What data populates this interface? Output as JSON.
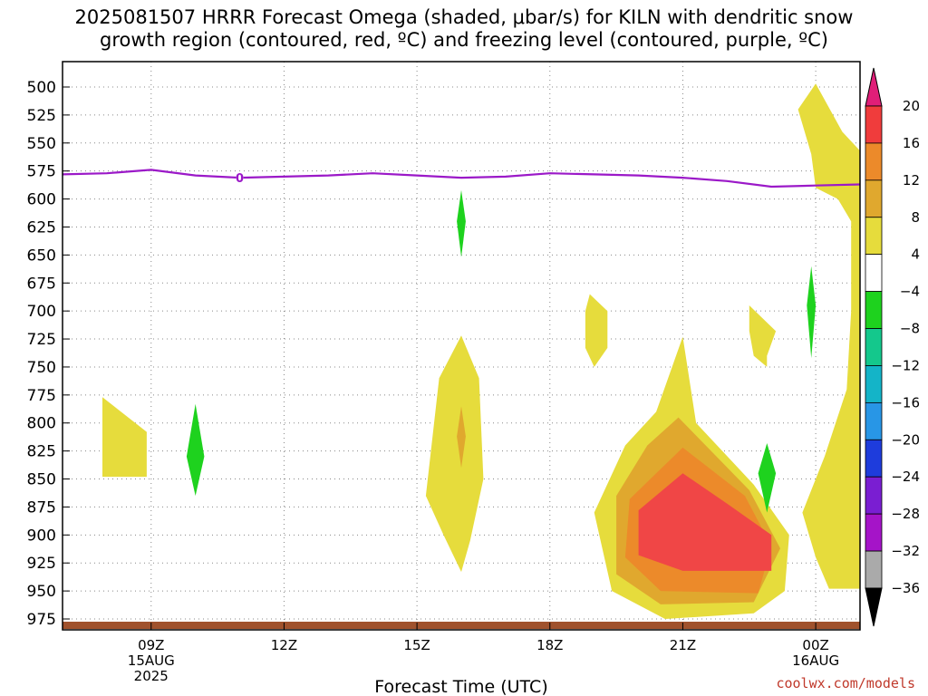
{
  "title": {
    "line1": "2025081507 HRRR Forecast Omega (shaded, μbar/s) for KILN with dendritic snow",
    "line2": "growth region (contoured, red, ºC) and freezing level (contoured, purple, ºC)"
  },
  "xaxis_title": "Forecast Time (UTC)",
  "credit": "coolwx.com/models",
  "colors": {
    "yellow": "#e6dc3c",
    "gold": "#e0a82e",
    "orange": "#ec8a2a",
    "red": "#f04646",
    "green": "#1ed21e",
    "freezing_line": "#9b19c8",
    "ground": "#a0522d"
  },
  "chart_data": {
    "type": "contour-time-height",
    "x_unit": "forecast hour (UTC)",
    "xlim": [
      7,
      25
    ],
    "ylim": [
      985,
      490
    ],
    "ylabel": "",
    "xlabel": "Forecast Time (UTC)",
    "y_ticks": [
      500,
      525,
      550,
      575,
      600,
      625,
      650,
      675,
      700,
      725,
      750,
      775,
      800,
      825,
      850,
      875,
      900,
      925,
      950,
      975
    ],
    "x_ticks": [
      {
        "hour": 9,
        "label": "09Z",
        "sub1": "15AUG",
        "sub2": "2025"
      },
      {
        "hour": 12,
        "label": "12Z",
        "sub1": "",
        "sub2": ""
      },
      {
        "hour": 15,
        "label": "15Z",
        "sub1": "",
        "sub2": ""
      },
      {
        "hour": 18,
        "label": "18Z",
        "sub1": "",
        "sub2": ""
      },
      {
        "hour": 21,
        "label": "21Z",
        "sub1": "",
        "sub2": ""
      },
      {
        "hour": 24,
        "label": "00Z",
        "sub1": "16AUG",
        "sub2": ""
      }
    ],
    "colorbar": {
      "levels": [
        20,
        16,
        12,
        8,
        4,
        -4,
        -8,
        -12,
        -16,
        -20,
        -24,
        -28,
        -32,
        -36
      ],
      "colors": [
        "#f03c3c",
        "#ec8a2a",
        "#e0a82e",
        "#e6dc3c",
        "#ffffff",
        "#1ed21e",
        "#14c88c",
        "#14b4c8",
        "#2896e6",
        "#1e3cdc",
        "#7a1ed2",
        "#a514c8",
        "#aaaaaa"
      ],
      "top_color": "#e01e78",
      "bottom_color": "#000000"
    },
    "freezing_level": {
      "label": "0",
      "points": [
        [
          7,
          578
        ],
        [
          8,
          577
        ],
        [
          9,
          574
        ],
        [
          10,
          579
        ],
        [
          11,
          581
        ],
        [
          12,
          580
        ],
        [
          13,
          579
        ],
        [
          14,
          577
        ],
        [
          15,
          579
        ],
        [
          16,
          581
        ],
        [
          17,
          580
        ],
        [
          18,
          577
        ],
        [
          19,
          578
        ],
        [
          20,
          579
        ],
        [
          21,
          581
        ],
        [
          22,
          584
        ],
        [
          23,
          589
        ],
        [
          24,
          588
        ],
        [
          25,
          587
        ]
      ]
    },
    "omega_regions": [
      {
        "level": "4",
        "color": "yellow",
        "points": [
          [
            7.9,
            777
          ],
          [
            8.9,
            808
          ],
          [
            8.9,
            848
          ],
          [
            7.9,
            848
          ]
        ]
      },
      {
        "level": "-4",
        "color": "green",
        "points": [
          [
            10.0,
            783
          ],
          [
            10.2,
            830
          ],
          [
            10.0,
            865
          ],
          [
            9.8,
            830
          ]
        ]
      },
      {
        "level": "-4",
        "color": "green",
        "points": [
          [
            16.0,
            592
          ],
          [
            16.1,
            620
          ],
          [
            16.0,
            652
          ],
          [
            15.9,
            620
          ]
        ]
      },
      {
        "level": "4",
        "color": "yellow",
        "points": [
          [
            16.0,
            722
          ],
          [
            16.4,
            760
          ],
          [
            16.5,
            850
          ],
          [
            16.2,
            905
          ],
          [
            16.0,
            933
          ],
          [
            15.6,
            900
          ],
          [
            15.2,
            865
          ],
          [
            15.5,
            760
          ]
        ]
      },
      {
        "level": "8",
        "color": "gold",
        "points": [
          [
            16.0,
            785
          ],
          [
            16.1,
            812
          ],
          [
            16.0,
            840
          ],
          [
            15.9,
            812
          ]
        ]
      },
      {
        "level": "4",
        "color": "yellow",
        "points": [
          [
            18.9,
            685
          ],
          [
            19.3,
            700
          ],
          [
            19.3,
            733
          ],
          [
            19.0,
            750
          ],
          [
            18.8,
            733
          ],
          [
            18.8,
            700
          ]
        ]
      },
      {
        "level": "4",
        "color": "yellow",
        "points": [
          [
            21.0,
            723
          ],
          [
            21.3,
            800
          ],
          [
            22.6,
            855
          ],
          [
            23.4,
            900
          ],
          [
            23.3,
            950
          ],
          [
            22.6,
            970
          ],
          [
            20.6,
            975
          ],
          [
            19.4,
            950
          ],
          [
            19.0,
            880
          ],
          [
            19.7,
            820
          ],
          [
            20.4,
            790
          ]
        ]
      },
      {
        "level": "8",
        "color": "gold",
        "points": [
          [
            20.9,
            795
          ],
          [
            22.5,
            860
          ],
          [
            23.2,
            912
          ],
          [
            22.6,
            960
          ],
          [
            20.5,
            962
          ],
          [
            19.5,
            935
          ],
          [
            19.5,
            865
          ],
          [
            20.2,
            820
          ]
        ]
      },
      {
        "level": "12",
        "color": "orange",
        "points": [
          [
            21.0,
            822
          ],
          [
            22.4,
            865
          ],
          [
            23.0,
            910
          ],
          [
            22.7,
            952
          ],
          [
            20.5,
            950
          ],
          [
            19.7,
            920
          ],
          [
            19.8,
            868
          ],
          [
            20.4,
            845
          ]
        ]
      },
      {
        "level": "16",
        "color": "red",
        "points": [
          [
            21.0,
            845
          ],
          [
            22.0,
            872
          ],
          [
            23.0,
            900
          ],
          [
            23.0,
            932
          ],
          [
            21.0,
            932
          ],
          [
            20.0,
            918
          ],
          [
            20.0,
            878
          ]
        ]
      },
      {
        "level": "4",
        "color": "yellow",
        "points": [
          [
            22.5,
            695
          ],
          [
            23.1,
            718
          ],
          [
            22.9,
            740
          ],
          [
            22.9,
            750
          ],
          [
            22.6,
            740
          ],
          [
            22.5,
            718
          ]
        ]
      },
      {
        "level": "-4",
        "color": "green",
        "points": [
          [
            23.9,
            660
          ],
          [
            24.0,
            695
          ],
          [
            23.9,
            742
          ],
          [
            23.8,
            695
          ]
        ]
      },
      {
        "level": "-4",
        "color": "green",
        "points": [
          [
            22.9,
            818
          ],
          [
            23.1,
            845
          ],
          [
            22.9,
            880
          ],
          [
            22.7,
            845
          ]
        ]
      },
      {
        "level": "4",
        "color": "yellow",
        "points": [
          [
            24.0,
            497
          ],
          [
            24.6,
            540
          ],
          [
            25.0,
            557
          ],
          [
            25.0,
            948
          ],
          [
            24.3,
            948
          ],
          [
            24.0,
            920
          ],
          [
            23.7,
            880
          ],
          [
            24.2,
            830
          ],
          [
            24.7,
            770
          ],
          [
            24.8,
            700
          ],
          [
            24.8,
            620
          ],
          [
            24.5,
            600
          ],
          [
            24.0,
            590
          ],
          [
            23.9,
            560
          ],
          [
            23.6,
            520
          ]
        ]
      }
    ]
  }
}
